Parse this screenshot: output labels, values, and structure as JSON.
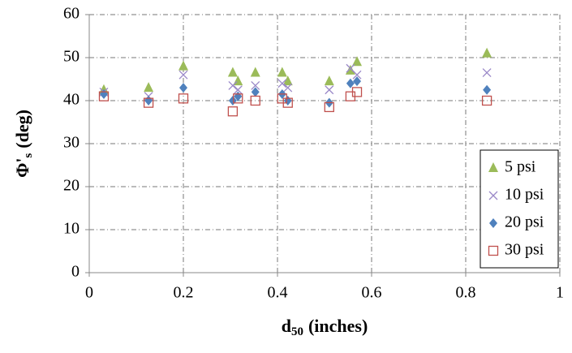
{
  "chart_data": {
    "type": "scatter",
    "x_label": [
      "d",
      "50",
      "(inches)"
    ],
    "y_label": [
      "Φ'",
      "s",
      "(deg)"
    ],
    "xlim": [
      0,
      1
    ],
    "xticks": [
      0,
      0.2,
      0.4,
      0.6,
      0.8,
      1
    ],
    "ylim": [
      0,
      60
    ],
    "yticks": [
      0,
      10,
      20,
      30,
      40,
      50,
      60
    ],
    "grid": true,
    "legend": "lower right",
    "x": [
      0.031,
      0.126,
      0.2,
      0.305,
      0.316,
      0.353,
      0.41,
      0.422,
      0.51,
      0.555,
      0.569,
      0.845
    ],
    "series": [
      {
        "name": "5 psi",
        "color": "#9bbb59",
        "marker": "triangle",
        "values": [
          42.5,
          43,
          48,
          46.5,
          44.5,
          46.5,
          46.5,
          44.5,
          44.5,
          47,
          49,
          51
        ]
      },
      {
        "name": "10 psi",
        "color": "#9a88c8",
        "marker": "x",
        "values": [
          42,
          41,
          46,
          43.5,
          42.5,
          43.5,
          44,
          43,
          42.5,
          47.5,
          46,
          46.5
        ]
      },
      {
        "name": "20 psi",
        "color": "#4f81bd",
        "marker": "diamond",
        "values": [
          41.5,
          40,
          43,
          40,
          41,
          42,
          41.5,
          40,
          39.5,
          44,
          44.5,
          42.5
        ]
      },
      {
        "name": "30 psi",
        "color": "#c0504d",
        "marker": "square-open",
        "values": [
          41,
          39.5,
          40.5,
          37.5,
          40.5,
          40,
          40.5,
          39.5,
          38.5,
          41,
          42,
          40
        ]
      }
    ]
  }
}
